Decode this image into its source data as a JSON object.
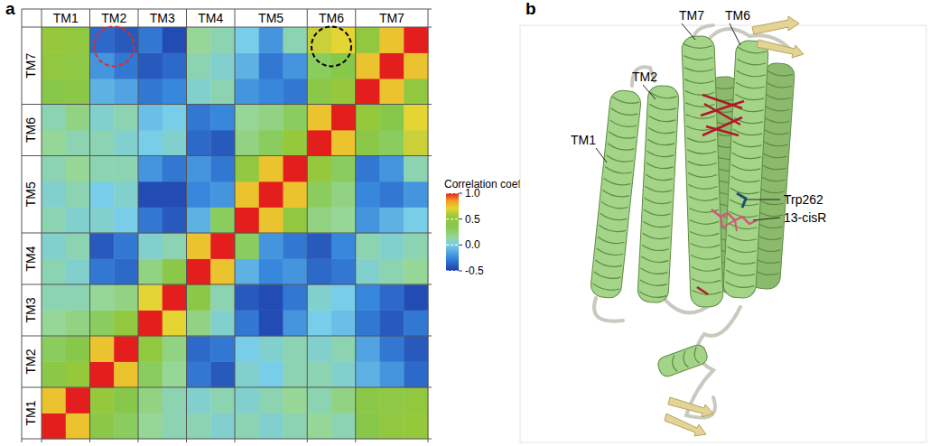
{
  "chart_data": {
    "type": "heatmap",
    "panel_label": "a",
    "segments": [
      {
        "label": "TM1",
        "start": 0,
        "end": 2
      },
      {
        "label": "TM2",
        "start": 2,
        "end": 4
      },
      {
        "label": "TM3",
        "start": 4,
        "end": 6
      },
      {
        "label": "TM4",
        "start": 6,
        "end": 8
      },
      {
        "label": "TM5",
        "start": 8,
        "end": 11
      },
      {
        "label": "TM6",
        "start": 11,
        "end": 13
      },
      {
        "label": "TM7",
        "start": 13,
        "end": 16
      }
    ],
    "values": [
      [
        1.0,
        0.75,
        0.4,
        0.3,
        0.15,
        0.1,
        0.1,
        0.05,
        0.1,
        0.05,
        0.1,
        0.15,
        0.1,
        0.35,
        0.5,
        0.55
      ],
      [
        0.75,
        1.0,
        0.55,
        0.35,
        0.2,
        0.1,
        0.05,
        0.1,
        0.05,
        0.1,
        0.15,
        0.1,
        0.2,
        0.4,
        0.45,
        0.5
      ],
      [
        0.4,
        0.55,
        1.0,
        0.75,
        0.3,
        0.15,
        -0.3,
        -0.4,
        0.05,
        0.0,
        0.1,
        0.1,
        0.05,
        -0.1,
        -0.2,
        -0.35
      ],
      [
        0.3,
        0.35,
        0.75,
        1.0,
        0.5,
        0.2,
        -0.35,
        -0.3,
        0.0,
        0.05,
        0.1,
        0.05,
        0.1,
        -0.15,
        -0.3,
        -0.4
      ],
      [
        0.15,
        0.2,
        0.3,
        0.5,
        1.0,
        0.7,
        0.2,
        0.05,
        -0.3,
        -0.45,
        -0.2,
        0.0,
        -0.05,
        -0.3,
        -0.4,
        -0.3
      ],
      [
        0.1,
        0.1,
        0.15,
        0.2,
        0.7,
        1.0,
        0.4,
        0.1,
        -0.4,
        -0.45,
        -0.3,
        0.05,
        0.0,
        -0.25,
        -0.35,
        -0.45
      ],
      [
        0.1,
        0.05,
        -0.3,
        -0.35,
        0.2,
        0.4,
        1.0,
        0.75,
        -0.1,
        -0.25,
        -0.2,
        -0.35,
        -0.3,
        0.05,
        0.1,
        0.15
      ],
      [
        0.05,
        0.1,
        -0.4,
        -0.3,
        0.05,
        0.1,
        0.75,
        1.0,
        0.3,
        -0.2,
        -0.3,
        -0.4,
        -0.25,
        0.1,
        0.05,
        0.1
      ],
      [
        0.1,
        0.05,
        0.05,
        0.0,
        -0.3,
        -0.4,
        -0.1,
        0.3,
        1.0,
        0.75,
        0.5,
        0.2,
        0.15,
        -0.2,
        -0.1,
        0.0
      ],
      [
        0.05,
        0.1,
        0.0,
        0.05,
        -0.45,
        -0.45,
        -0.25,
        -0.2,
        0.75,
        1.0,
        0.75,
        0.3,
        0.2,
        -0.25,
        -0.3,
        -0.2
      ],
      [
        0.1,
        0.15,
        0.1,
        0.1,
        -0.2,
        -0.3,
        -0.2,
        -0.3,
        0.5,
        0.75,
        1.0,
        0.55,
        0.3,
        -0.3,
        -0.2,
        0.1
      ],
      [
        0.15,
        0.1,
        0.1,
        0.05,
        0.0,
        0.05,
        -0.35,
        -0.4,
        0.2,
        0.3,
        0.55,
        1.0,
        0.75,
        0.4,
        0.3,
        0.65
      ],
      [
        0.1,
        0.2,
        0.05,
        0.1,
        -0.05,
        0.0,
        -0.3,
        -0.25,
        0.15,
        0.2,
        0.3,
        0.75,
        1.0,
        0.55,
        0.35,
        0.7
      ],
      [
        0.35,
        0.4,
        -0.1,
        -0.15,
        -0.3,
        -0.25,
        0.05,
        0.1,
        -0.2,
        -0.25,
        -0.3,
        0.4,
        0.55,
        1.0,
        0.75,
        0.5
      ],
      [
        0.5,
        0.45,
        -0.2,
        -0.3,
        -0.4,
        -0.35,
        0.1,
        0.05,
        -0.1,
        -0.3,
        -0.2,
        0.3,
        0.35,
        0.75,
        1.0,
        0.75
      ],
      [
        0.55,
        0.5,
        -0.35,
        -0.4,
        -0.3,
        -0.45,
        0.15,
        0.1,
        0.0,
        -0.2,
        0.1,
        0.65,
        0.7,
        0.5,
        0.75,
        1.0
      ]
    ],
    "colorbar": {
      "title": "Correlation coefficient",
      "range": [
        -0.5,
        1.0
      ],
      "ticks": [
        {
          "value": 1.0,
          "label": "1.0"
        },
        0.5,
        {
          "value": 0.0,
          "label": "0.0"
        },
        -0.5
      ]
    },
    "highlights": [
      {
        "row": "TM7",
        "column": "TM2",
        "color": "#e02a2a"
      },
      {
        "row": "TM7",
        "column": "TM6",
        "color": "#000000"
      }
    ]
  },
  "diagram": {
    "panel_label": "b",
    "labels": [
      {
        "text": "TM7"
      },
      {
        "text": "TM6"
      },
      {
        "text": "TM2"
      },
      {
        "text": "TM1"
      },
      {
        "text": "Trp262"
      },
      {
        "text": "13-cisR"
      }
    ]
  }
}
